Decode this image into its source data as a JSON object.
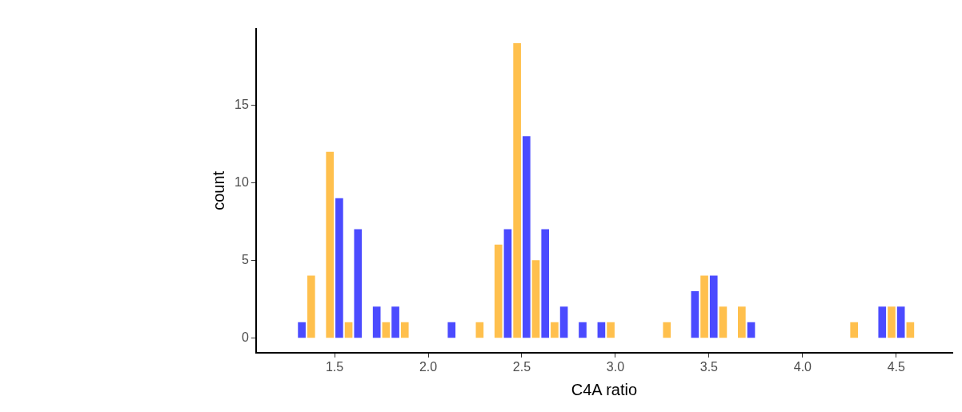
{
  "chart_data": {
    "type": "bar",
    "xlabel": "C4A ratio",
    "ylabel": "count",
    "xlim": [
      1.08,
      4.8
    ],
    "xticks": [
      {
        "value": 1.5,
        "label": "1.5"
      },
      {
        "value": 2,
        "label": "2.0"
      },
      {
        "value": 2.5,
        "label": "2.5"
      },
      {
        "value": 3,
        "label": "3.0"
      },
      {
        "value": 3.5,
        "label": "3.5"
      },
      {
        "value": 4,
        "label": "4.0"
      },
      {
        "value": 4.5,
        "label": "4.5"
      }
    ],
    "ylim": [
      -0.95,
      19.95
    ],
    "yticks": [
      0,
      5,
      10,
      15
    ],
    "grid": false,
    "legend": false,
    "series": [
      {
        "color": "#ffc04d",
        "x": [
          1.375,
          1.475,
          1.575,
          1.775,
          1.875,
          2.275,
          2.375,
          2.475,
          2.575,
          2.675,
          2.975,
          3.275,
          3.475,
          3.575,
          3.675,
          4.275,
          4.475,
          4.575
        ],
        "values": [
          4,
          12,
          1,
          1,
          1,
          1,
          6,
          19,
          5,
          1,
          1,
          1,
          4,
          2,
          2,
          1,
          2,
          1
        ]
      },
      {
        "color": "#4b4bff",
        "x": [
          1.325,
          1.525,
          1.625,
          1.725,
          1.825,
          2.125,
          2.425,
          2.525,
          2.625,
          2.725,
          2.825,
          2.925,
          3.425,
          3.525,
          3.725,
          4.425,
          4.525
        ],
        "values": [
          1,
          9,
          7,
          2,
          2,
          1,
          7,
          13,
          7,
          2,
          1,
          1,
          3,
          4,
          1,
          2,
          2
        ]
      }
    ]
  }
}
